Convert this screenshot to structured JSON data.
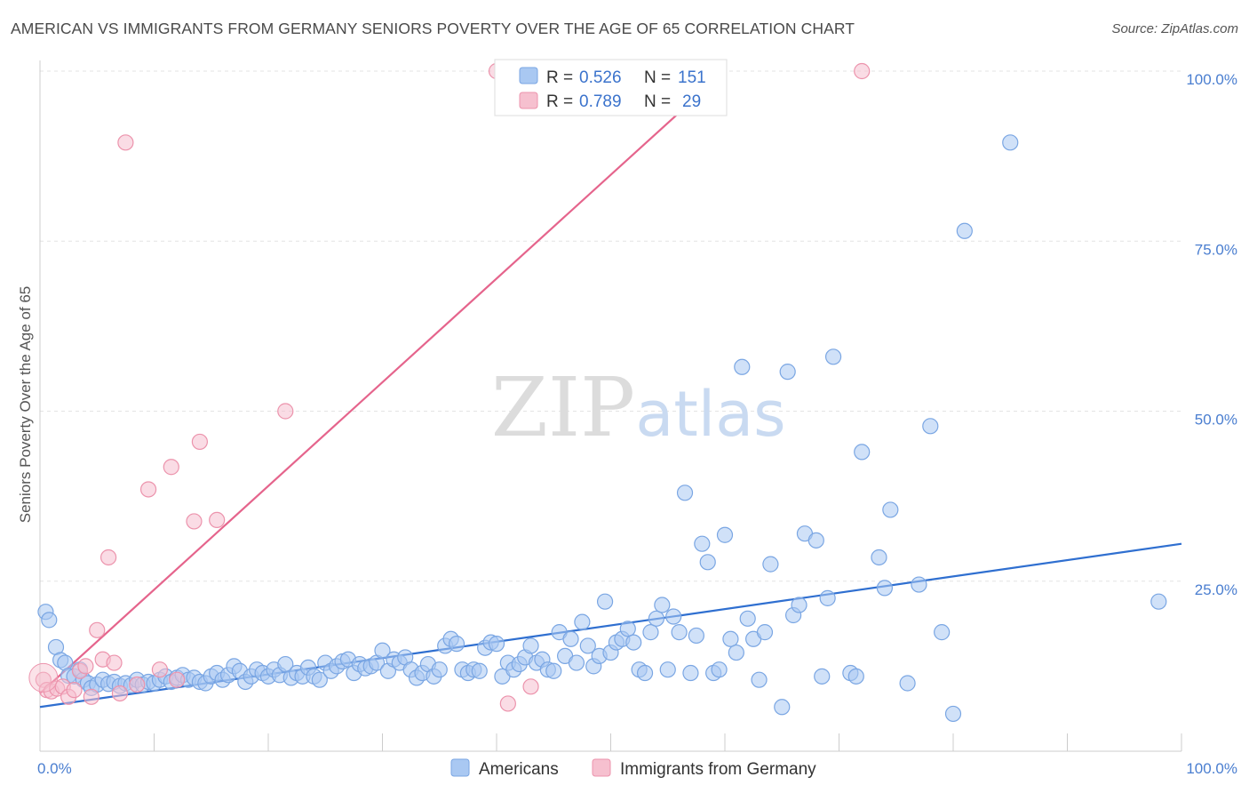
{
  "title": "AMERICAN VS IMMIGRANTS FROM GERMANY SENIORS POVERTY OVER THE AGE OF 65 CORRELATION CHART",
  "source": "Source: ZipAtlas.com",
  "watermark": {
    "zip": "ZIP",
    "atlas": "atlas"
  },
  "colors": {
    "blue_fill": "#a9c8f2",
    "blue_stroke": "#7aa6e3",
    "blue_line": "#2f6fd0",
    "pink_fill": "#f6c0cf",
    "pink_stroke": "#ec93ac",
    "pink_line": "#e5648c",
    "tick_text": "#4a7ed0",
    "grid": "#e3e3e3"
  },
  "legend_stats": [
    {
      "label_r": "R =",
      "r": "0.526",
      "label_n": "N =",
      "n": "151",
      "color": "blue"
    },
    {
      "label_r": "R =",
      "r": "0.789",
      "label_n": "N =",
      "n": "29",
      "color": "pink"
    }
  ],
  "chart_data": {
    "type": "scatter",
    "title": "AMERICAN VS IMMIGRANTS FROM GERMANY SENIORS POVERTY OVER THE AGE OF 65 CORRELATION CHART",
    "xlabel": "",
    "ylabel": "Seniors Poverty Over the Age of 65",
    "xlim": [
      0,
      100
    ],
    "ylim": [
      0,
      100
    ],
    "x_tick_labels": [
      "0.0%",
      "100.0%"
    ],
    "y_ticks": [
      25,
      50,
      75,
      100
    ],
    "y_tick_labels": [
      "25.0%",
      "50.0%",
      "75.0%",
      "100.0%"
    ],
    "grid": true,
    "legend_position": "bottom-center",
    "series": [
      {
        "name": "Americans",
        "color": "blue",
        "trend": {
          "x": [
            0,
            100
          ],
          "y": [
            6.5,
            30.5
          ]
        },
        "points": [
          [
            0.5,
            20.5
          ],
          [
            0.8,
            19.3
          ],
          [
            1.4,
            15.3
          ],
          [
            1.8,
            13.4
          ],
          [
            2.2,
            13.0
          ],
          [
            2.5,
            11.1
          ],
          [
            3.0,
            11.0
          ],
          [
            3.5,
            12.0
          ],
          [
            3.8,
            10.5
          ],
          [
            4.2,
            10.0
          ],
          [
            4.5,
            9.3
          ],
          [
            5.0,
            9.8
          ],
          [
            5.5,
            10.5
          ],
          [
            6.0,
            9.9
          ],
          [
            6.5,
            10.2
          ],
          [
            7.0,
            9.6
          ],
          [
            7.5,
            10.0
          ],
          [
            8.0,
            9.7
          ],
          [
            8.5,
            10.5
          ],
          [
            9.0,
            9.8
          ],
          [
            9.5,
            10.2
          ],
          [
            10.0,
            10.0
          ],
          [
            10.5,
            10.5
          ],
          [
            11.0,
            11.0
          ],
          [
            11.5,
            10.2
          ],
          [
            12.0,
            10.8
          ],
          [
            12.5,
            11.2
          ],
          [
            13.0,
            10.5
          ],
          [
            13.5,
            10.8
          ],
          [
            14.0,
            10.2
          ],
          [
            14.5,
            10.0
          ],
          [
            15.0,
            11.0
          ],
          [
            15.5,
            11.5
          ],
          [
            16.0,
            10.5
          ],
          [
            16.5,
            11.2
          ],
          [
            17.0,
            12.5
          ],
          [
            17.5,
            11.8
          ],
          [
            18.0,
            10.2
          ],
          [
            18.5,
            11.0
          ],
          [
            19.0,
            12.0
          ],
          [
            19.5,
            11.5
          ],
          [
            20.0,
            11.0
          ],
          [
            20.5,
            12.0
          ],
          [
            21.0,
            11.2
          ],
          [
            21.5,
            12.8
          ],
          [
            22.0,
            10.8
          ],
          [
            22.5,
            11.5
          ],
          [
            23.0,
            11.0
          ],
          [
            23.5,
            12.3
          ],
          [
            24.0,
            11.0
          ],
          [
            24.5,
            10.5
          ],
          [
            25.0,
            13.0
          ],
          [
            25.5,
            11.8
          ],
          [
            26.0,
            12.5
          ],
          [
            26.5,
            13.2
          ],
          [
            27.0,
            13.5
          ],
          [
            27.5,
            11.5
          ],
          [
            28.0,
            12.8
          ],
          [
            28.5,
            12.2
          ],
          [
            29.0,
            12.5
          ],
          [
            29.5,
            13.0
          ],
          [
            30.0,
            14.8
          ],
          [
            30.5,
            11.8
          ],
          [
            31.0,
            13.5
          ],
          [
            31.5,
            13.0
          ],
          [
            32.0,
            13.8
          ],
          [
            32.5,
            12.0
          ],
          [
            33.0,
            10.8
          ],
          [
            33.5,
            11.5
          ],
          [
            34.0,
            12.8
          ],
          [
            34.5,
            11.0
          ],
          [
            35.0,
            12.0
          ],
          [
            35.5,
            15.5
          ],
          [
            36.0,
            16.5
          ],
          [
            36.5,
            15.8
          ],
          [
            37.0,
            12.0
          ],
          [
            37.5,
            11.5
          ],
          [
            38.0,
            12.0
          ],
          [
            38.5,
            11.8
          ],
          [
            39.0,
            15.2
          ],
          [
            39.5,
            16.0
          ],
          [
            40.0,
            15.8
          ],
          [
            40.5,
            11.0
          ],
          [
            41.0,
            13.0
          ],
          [
            41.5,
            12.0
          ],
          [
            42.0,
            12.8
          ],
          [
            42.5,
            13.8
          ],
          [
            43.0,
            15.5
          ],
          [
            43.5,
            13.0
          ],
          [
            44.0,
            13.5
          ],
          [
            44.5,
            12.0
          ],
          [
            45.0,
            11.8
          ],
          [
            45.5,
            17.5
          ],
          [
            46.0,
            14.0
          ],
          [
            46.5,
            16.5
          ],
          [
            47.0,
            13.0
          ],
          [
            47.5,
            19.0
          ],
          [
            48.0,
            15.5
          ],
          [
            48.5,
            12.5
          ],
          [
            49.0,
            14.0
          ],
          [
            49.5,
            22.0
          ],
          [
            50.0,
            14.5
          ],
          [
            50.5,
            16.0
          ],
          [
            51.0,
            16.5
          ],
          [
            51.5,
            18.0
          ],
          [
            52.0,
            16.0
          ],
          [
            52.5,
            12.0
          ],
          [
            53.0,
            11.5
          ],
          [
            53.5,
            17.5
          ],
          [
            54.0,
            19.5
          ],
          [
            54.5,
            21.5
          ],
          [
            55.0,
            12.0
          ],
          [
            55.5,
            19.8
          ],
          [
            56.0,
            17.5
          ],
          [
            56.5,
            38.0
          ],
          [
            57.0,
            11.5
          ],
          [
            57.5,
            17.0
          ],
          [
            58.0,
            30.5
          ],
          [
            58.5,
            27.8
          ],
          [
            59.0,
            11.5
          ],
          [
            59.5,
            12.0
          ],
          [
            60.0,
            31.8
          ],
          [
            60.5,
            16.5
          ],
          [
            61.0,
            14.5
          ],
          [
            61.5,
            56.5
          ],
          [
            62.0,
            19.5
          ],
          [
            62.5,
            16.5
          ],
          [
            63.0,
            10.5
          ],
          [
            63.5,
            17.5
          ],
          [
            64.0,
            27.5
          ],
          [
            65.0,
            6.5
          ],
          [
            65.5,
            55.8
          ],
          [
            66.0,
            20.0
          ],
          [
            66.5,
            21.5
          ],
          [
            67.0,
            32.0
          ],
          [
            68.0,
            31.0
          ],
          [
            68.5,
            11.0
          ],
          [
            69.0,
            22.5
          ],
          [
            69.5,
            58.0
          ],
          [
            71.0,
            11.5
          ],
          [
            71.5,
            11.0
          ],
          [
            72.0,
            44.0
          ],
          [
            73.5,
            28.5
          ],
          [
            74.0,
            24.0
          ],
          [
            74.5,
            35.5
          ],
          [
            76.0,
            10.0
          ],
          [
            77.0,
            24.5
          ],
          [
            78.0,
            47.8
          ],
          [
            79.0,
            17.5
          ],
          [
            80.0,
            5.5
          ],
          [
            81.0,
            76.5
          ],
          [
            85.0,
            89.5
          ],
          [
            98.0,
            22.0
          ]
        ]
      },
      {
        "name": "Immigrants from Germany",
        "color": "pink",
        "trend": {
          "x": [
            0,
            60
          ],
          "y": [
            8.5,
            100
          ]
        },
        "points": [
          [
            0.3,
            10.5
          ],
          [
            0.6,
            9.0
          ],
          [
            1.0,
            8.8
          ],
          [
            1.5,
            9.2
          ],
          [
            2.0,
            9.5
          ],
          [
            2.5,
            8.0
          ],
          [
            3.0,
            9.0
          ],
          [
            3.5,
            11.8
          ],
          [
            4.0,
            12.5
          ],
          [
            4.5,
            8.0
          ],
          [
            5.0,
            17.8
          ],
          [
            5.5,
            13.5
          ],
          [
            6.0,
            28.5
          ],
          [
            6.5,
            13.0
          ],
          [
            7.0,
            8.5
          ],
          [
            7.5,
            89.5
          ],
          [
            8.5,
            9.8
          ],
          [
            9.5,
            38.5
          ],
          [
            10.5,
            12.0
          ],
          [
            11.5,
            41.8
          ],
          [
            12.0,
            10.5
          ],
          [
            13.5,
            33.8
          ],
          [
            14.0,
            45.5
          ],
          [
            15.5,
            34.0
          ],
          [
            21.5,
            50.0
          ],
          [
            40.0,
            100.0
          ],
          [
            41.0,
            7.0
          ],
          [
            43.0,
            9.5
          ],
          [
            72.0,
            100.0
          ]
        ]
      }
    ]
  }
}
